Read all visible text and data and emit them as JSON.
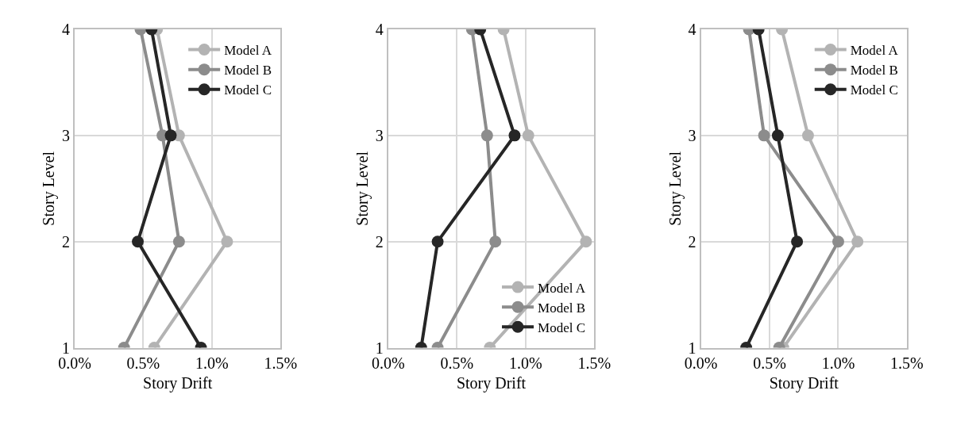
{
  "chart_data": [
    {
      "type": "line",
      "xlabel": "Story Drift",
      "ylabel": "Story Level",
      "xlim": [
        0,
        1.5
      ],
      "xticks": [
        {
          "value": 0,
          "label": "0.0%"
        },
        {
          "value": 0.5,
          "label": "0.5%"
        },
        {
          "value": 1.0,
          "label": "1.0%"
        },
        {
          "value": 1.5,
          "label": "1.5%"
        }
      ],
      "ylim": [
        1,
        4
      ],
      "yticks": [
        1,
        2,
        3,
        4
      ],
      "grid": true,
      "legend": "top right",
      "marker": "circle",
      "line_style": "solid",
      "series": [
        {
          "name": "Model A",
          "color": "#b3b3b3",
          "x": [
            0.58,
            1.11,
            0.76,
            0.6
          ],
          "values": [
            1,
            2,
            3,
            4
          ]
        },
        {
          "name": "Model B",
          "color": "#8c8c8c",
          "x": [
            0.36,
            0.76,
            0.64,
            0.48
          ],
          "values": [
            1,
            2,
            3,
            4
          ]
        },
        {
          "name": "Model C",
          "color": "#262626",
          "x": [
            0.92,
            0.46,
            0.7,
            0.56
          ],
          "values": [
            1,
            2,
            3,
            4
          ]
        }
      ]
    },
    {
      "type": "line",
      "xlabel": "Story Drift",
      "ylabel": "Story Level",
      "xlim": [
        0,
        1.5
      ],
      "xticks": [
        {
          "value": 0,
          "label": "0.0%"
        },
        {
          "value": 0.5,
          "label": "0.5%"
        },
        {
          "value": 1.0,
          "label": "1.0%"
        },
        {
          "value": 1.5,
          "label": "1.5%"
        }
      ],
      "ylim": [
        1,
        4
      ],
      "yticks": [
        1,
        2,
        3,
        4
      ],
      "grid": true,
      "legend": "bottom right",
      "marker": "circle",
      "line_style": "solid",
      "series": [
        {
          "name": "Model A",
          "color": "#b3b3b3",
          "x": [
            0.74,
            1.44,
            1.02,
            0.84
          ],
          "values": [
            1,
            2,
            3,
            4
          ]
        },
        {
          "name": "Model B",
          "color": "#8c8c8c",
          "x": [
            0.36,
            0.78,
            0.72,
            0.61
          ],
          "values": [
            1,
            2,
            3,
            4
          ]
        },
        {
          "name": "Model C",
          "color": "#262626",
          "x": [
            0.24,
            0.36,
            0.92,
            0.67
          ],
          "values": [
            1,
            2,
            3,
            4
          ]
        }
      ]
    },
    {
      "type": "line",
      "xlabel": "Story Drift",
      "ylabel": "Story Level",
      "xlim": [
        0,
        1.5
      ],
      "xticks": [
        {
          "value": 0,
          "label": "0.0%"
        },
        {
          "value": 0.5,
          "label": "0.5%"
        },
        {
          "value": 1.0,
          "label": "1.0%"
        },
        {
          "value": 1.5,
          "label": "1.5%"
        }
      ],
      "ylim": [
        1,
        4
      ],
      "yticks": [
        1,
        2,
        3,
        4
      ],
      "grid": true,
      "legend": "top right",
      "marker": "circle",
      "line_style": "solid",
      "series": [
        {
          "name": "Model A",
          "color": "#b3b3b3",
          "x": [
            0.6,
            1.14,
            0.78,
            0.59
          ],
          "values": [
            1,
            2,
            3,
            4
          ]
        },
        {
          "name": "Model B",
          "color": "#8c8c8c",
          "x": [
            0.57,
            1.0,
            0.46,
            0.35
          ],
          "values": [
            1,
            2,
            3,
            4
          ]
        },
        {
          "name": "Model C",
          "color": "#262626",
          "x": [
            0.33,
            0.7,
            0.56,
            0.42
          ],
          "values": [
            1,
            2,
            3,
            4
          ]
        }
      ]
    }
  ]
}
